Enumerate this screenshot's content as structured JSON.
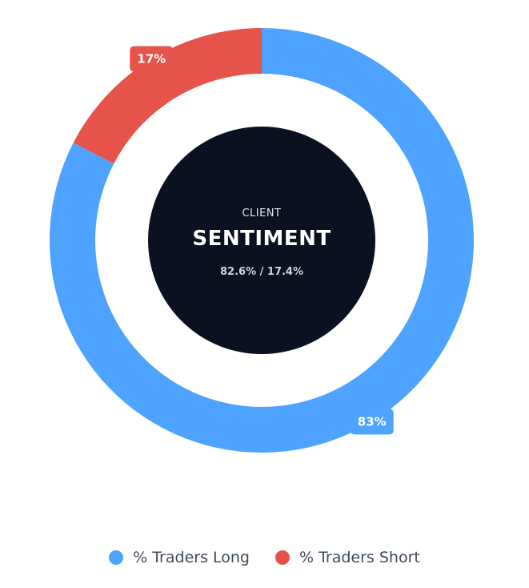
{
  "chart_data": {
    "type": "pie",
    "variant": "donut",
    "categories": [
      "% Traders Long",
      "% Traders Short"
    ],
    "values": [
      82.6,
      17.4
    ],
    "data_labels": [
      "83%",
      "17%"
    ],
    "colors": [
      "#4da3ff",
      "#e5534b"
    ],
    "legend_position": "bottom",
    "center": {
      "label_small": "CLIENT",
      "label_big": "SENTIMENT",
      "ratio_text": "82.6% / 17.4%",
      "background_color": "#0b1120"
    }
  }
}
